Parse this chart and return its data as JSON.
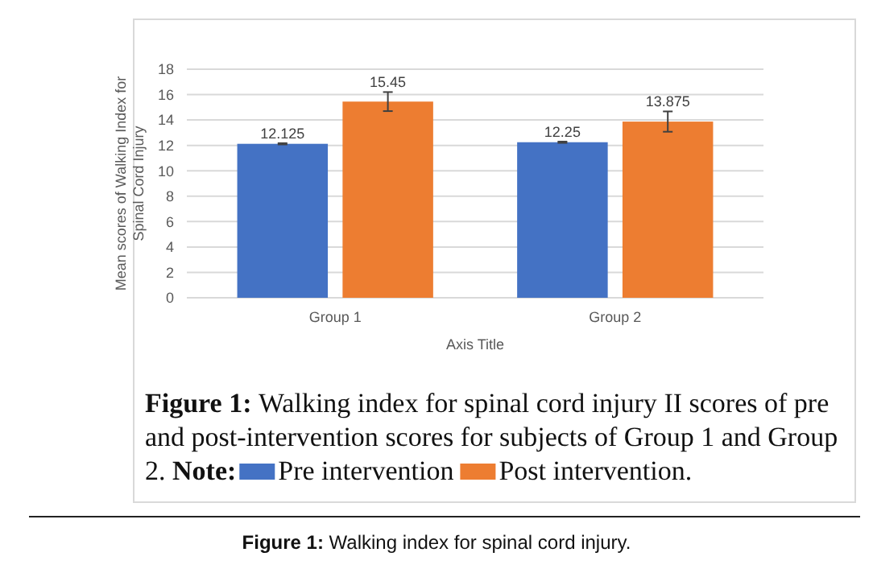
{
  "chart_data": {
    "type": "bar",
    "xlabel": "Axis Title",
    "ylabel": "Mean scores of Walking Index for Spinal Cord Injury",
    "categories": [
      "Group 1",
      "Group 2"
    ],
    "series": [
      {
        "name": "Pre intervention",
        "color": "#4472c4",
        "values": [
          12.125,
          12.25
        ],
        "errors": [
          0.05,
          0.05
        ]
      },
      {
        "name": "Post intervention.",
        "color": "#ed7d31",
        "values": [
          15.45,
          13.875
        ],
        "errors": [
          0.75,
          0.8
        ]
      }
    ],
    "ylim": [
      0,
      18
    ],
    "yticks": [
      0,
      2,
      4,
      6,
      8,
      10,
      12,
      14,
      16,
      18
    ],
    "grid": "y",
    "data_labels": true,
    "legend": "bottom",
    "annotations": [
      "Figure 1: Walking index for spinal cord injury II scores of pre and post-intervention scores for subjects of Group 1 and Group 2.",
      "Note:",
      "Figure 1: Walking index for spinal cord injury."
    ]
  }
}
